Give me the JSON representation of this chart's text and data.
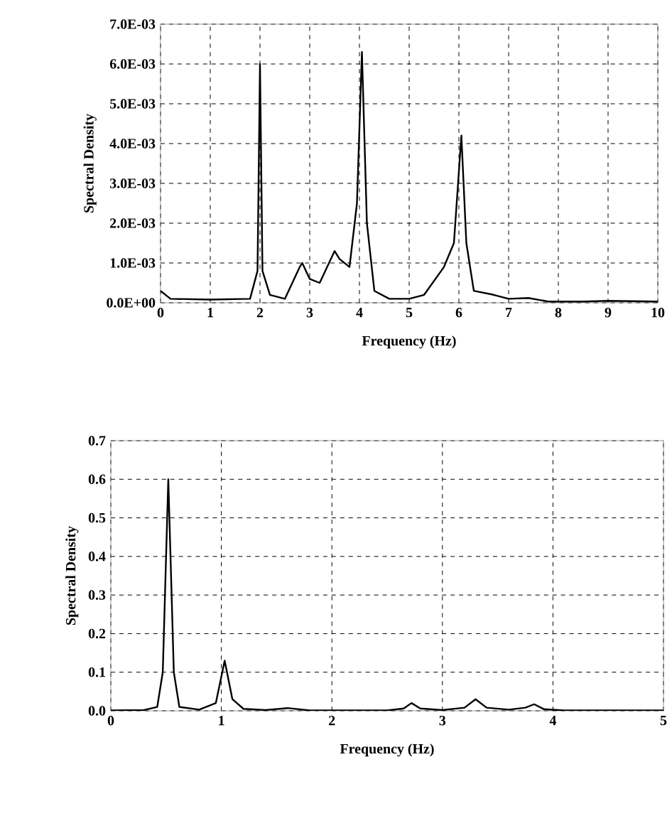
{
  "chart_data": [
    {
      "type": "line",
      "xlabel": "Frequency (Hz)",
      "ylabel": "Spectral Density",
      "grid": true,
      "marker": "none",
      "line_style": "solid",
      "xlim": [
        0,
        10
      ],
      "xticks": [
        0,
        1,
        2,
        3,
        4,
        5,
        6,
        7,
        8,
        9,
        10
      ],
      "ylim": [
        0,
        0.007
      ],
      "yticks": [
        {
          "value": 0,
          "label": "0.0E+00"
        },
        {
          "value": 0.001,
          "label": "1.0E-03"
        },
        {
          "value": 0.002,
          "label": "2.0E-03"
        },
        {
          "value": 0.003,
          "label": "3.0E-03"
        },
        {
          "value": 0.004,
          "label": "4.0E-03"
        },
        {
          "value": 0.005,
          "label": "5.0E-03"
        },
        {
          "value": 0.006,
          "label": "6.0E-03"
        },
        {
          "value": 0.007,
          "label": "7.0E-03"
        }
      ],
      "series": [
        {
          "color": "#000000",
          "x": [
            0,
            0.2,
            1,
            1.8,
            1.95,
            2.0,
            2.05,
            2.2,
            2.5,
            2.8,
            2.85,
            3.0,
            3.2,
            3.5,
            3.6,
            3.8,
            3.95,
            4.05,
            4.15,
            4.3,
            4.6,
            5.0,
            5.3,
            5.7,
            5.9,
            6.05,
            6.15,
            6.3,
            6.7,
            7.0,
            7.4,
            7.8,
            8.5,
            9,
            10
          ],
          "values": [
            0.0003,
            0.0001,
            8e-05,
            0.0001,
            0.0008,
            0.006,
            0.0008,
            0.0002,
            0.0001,
            0.0009,
            0.001,
            0.0006,
            0.0005,
            0.0013,
            0.0011,
            0.0009,
            0.0025,
            0.0063,
            0.002,
            0.0003,
            0.0001,
            0.0001,
            0.0002,
            0.0009,
            0.0015,
            0.0042,
            0.0015,
            0.0003,
            0.0002,
            0.0001,
            0.00012,
            3e-05,
            3e-05,
            5e-05,
            3e-05
          ]
        }
      ]
    },
    {
      "type": "line",
      "xlabel": "Frequency (Hz)",
      "ylabel": "Spectral Density",
      "grid": true,
      "marker": "none",
      "line_style": "solid",
      "xlim": [
        0,
        5
      ],
      "xticks": [
        0,
        1,
        2,
        3,
        4,
        5
      ],
      "ylim": [
        0,
        0.7
      ],
      "yticks": [
        {
          "value": 0,
          "label": "0.0"
        },
        {
          "value": 0.1,
          "label": "0.1"
        },
        {
          "value": 0.2,
          "label": "0.2"
        },
        {
          "value": 0.3,
          "label": "0.3"
        },
        {
          "value": 0.4,
          "label": "0.4"
        },
        {
          "value": 0.5,
          "label": "0.5"
        },
        {
          "value": 0.6,
          "label": "0.6"
        },
        {
          "value": 0.7,
          "label": "0.7"
        }
      ],
      "series": [
        {
          "color": "#000000",
          "x": [
            0,
            0.3,
            0.42,
            0.47,
            0.52,
            0.57,
            0.62,
            0.8,
            0.95,
            1.03,
            1.1,
            1.2,
            1.4,
            1.6,
            1.8,
            2.5,
            2.65,
            2.72,
            2.8,
            3.0,
            3.2,
            3.3,
            3.4,
            3.6,
            3.75,
            3.83,
            3.92,
            4.1,
            5
          ],
          "values": [
            0.001,
            0.002,
            0.01,
            0.1,
            0.6,
            0.1,
            0.01,
            0.003,
            0.02,
            0.13,
            0.03,
            0.005,
            0.002,
            0.007,
            0.001,
            0.001,
            0.006,
            0.02,
            0.006,
            0.002,
            0.008,
            0.03,
            0.008,
            0.003,
            0.008,
            0.017,
            0.004,
            0.001,
            0.001
          ]
        }
      ]
    }
  ]
}
